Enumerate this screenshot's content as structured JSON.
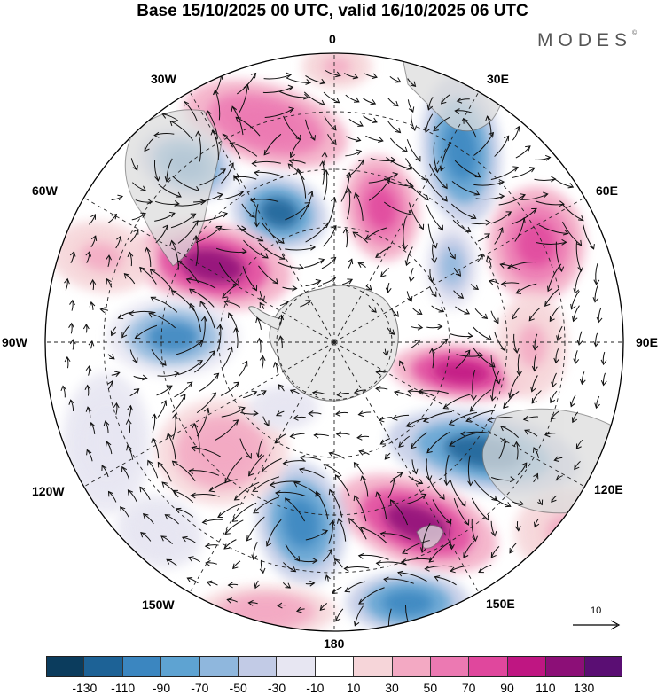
{
  "title": "Base 15/10/2025 00 UTC, valid 16/10/2025 06 UTC",
  "brand": "MODES",
  "brand_mark": "©",
  "projection": "south-polar-stereographic",
  "longitude_labels": [
    "0",
    "30E",
    "60E",
    "90E",
    "120E",
    "150E",
    "180",
    "150W",
    "120W",
    "90W",
    "60W",
    "30W"
  ],
  "reference_vector": {
    "value": "10",
    "icon": "arrow-right-icon"
  },
  "colorbar": {
    "colors": [
      "#0b3c5d",
      "#1d6296",
      "#3b86c0",
      "#5ea3d2",
      "#8fb7dd",
      "#c2cbe6",
      "#e7e6f2",
      "#ffffff",
      "#f6d5d9",
      "#f3a9c3",
      "#ec79b2",
      "#e0479d",
      "#bf1682",
      "#8c0f77",
      "#5a0e73"
    ],
    "tick_labels": [
      "-130",
      "-110",
      "-90",
      "-70",
      "-50",
      "-30",
      "-10",
      "10",
      "30",
      "50",
      "70",
      "90",
      "110",
      "130"
    ]
  },
  "colors": {
    "land": "#e4e4e4",
    "coast": "#666666",
    "grid": "#222222",
    "arrow": "#111111"
  }
}
